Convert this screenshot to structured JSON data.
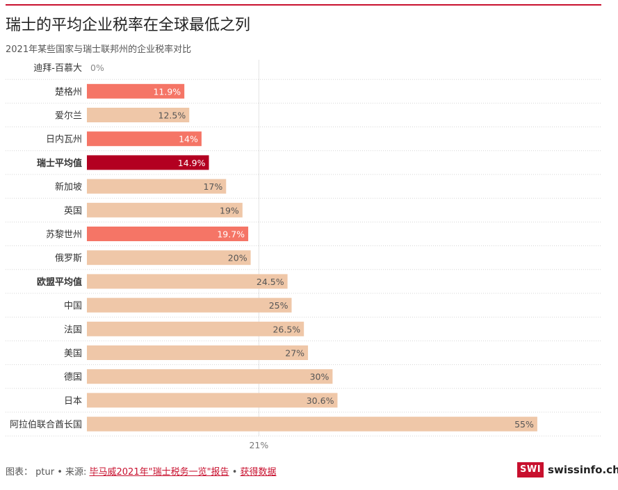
{
  "header": {
    "title": "瑞士的平均企业税率在全球最低之列",
    "subtitle": "2021年某些国家与瑞士联邦州的企业税率对比"
  },
  "colors": {
    "swiss_canton": "#f57566",
    "swiss_average": "#b30021",
    "other": "#efc7a8",
    "label_on_light": "#555555",
    "label_on_dark": "#ffffff",
    "accent": "#c8102e"
  },
  "chart_data": {
    "type": "bar",
    "orientation": "horizontal",
    "categories": [
      "迪拜-百慕大",
      "楚格州",
      "爱尔兰",
      "日内瓦州",
      "瑞士平均值",
      "新加坡",
      "英国",
      "苏黎世州",
      "俄罗斯",
      "欧盟平均值",
      "中国",
      "法国",
      "美国",
      "德国",
      "日本",
      "阿拉伯联合酋长国"
    ],
    "values": [
      0,
      11.9,
      12.5,
      14,
      14.9,
      17,
      19,
      19.7,
      20,
      24.5,
      25,
      26.5,
      27,
      30,
      30.6,
      55
    ],
    "value_labels": [
      "0%",
      "11.9%",
      "12.5%",
      "14%",
      "14.9%",
      "17%",
      "19%",
      "19.7%",
      "20%",
      "24.5%",
      "25%",
      "26.5%",
      "27%",
      "30%",
      "30.6%",
      "55%"
    ],
    "groups": [
      "other",
      "swiss_canton",
      "other",
      "swiss_canton",
      "swiss_average",
      "other",
      "other",
      "swiss_canton",
      "other",
      "other",
      "other",
      "other",
      "other",
      "other",
      "other",
      "other"
    ],
    "bold_categories": [
      "瑞士平均值",
      "欧盟平均值"
    ],
    "reference_line": {
      "value": 21,
      "label": "21%"
    },
    "xlim": [
      0,
      55
    ]
  },
  "footer": {
    "prefix": "图表： ptur • 来源: ",
    "source_link": "毕马威2021年\"瑞士税务一览\"报告",
    "separator": " • ",
    "data_link": "获得数据"
  },
  "logo": {
    "mark": "SWI",
    "text": "swissinfo.ch"
  }
}
